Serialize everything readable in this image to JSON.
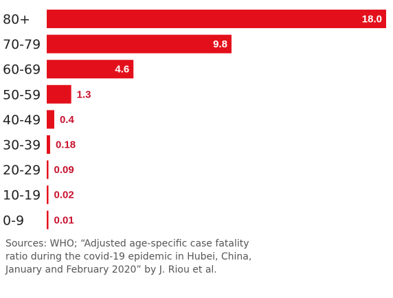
{
  "chart_data": {
    "type": "bar",
    "orientation": "horizontal",
    "categories": [
      "80+",
      "70-79",
      "60-69",
      "50-59",
      "40-49",
      "30-39",
      "20-29",
      "10-19",
      "0-9"
    ],
    "values": [
      18.0,
      9.8,
      4.6,
      1.3,
      0.4,
      0.18,
      0.09,
      0.02,
      0.01
    ],
    "value_labels": [
      "18.0",
      "9.8",
      "4.6",
      "1.3",
      "0.4",
      "0.18",
      "0.09",
      "0.02",
      "0.01"
    ],
    "xlim": [
      0,
      18.0
    ],
    "grid": false,
    "bar_color": "#e3101c",
    "label_color_outside": "#c8102e"
  },
  "source": "Sources: WHO; “Adjusted age-specific case fatality ratio during the covid-19 epidemic in Hubei, China, January and February 2020” by J. Riou et al."
}
